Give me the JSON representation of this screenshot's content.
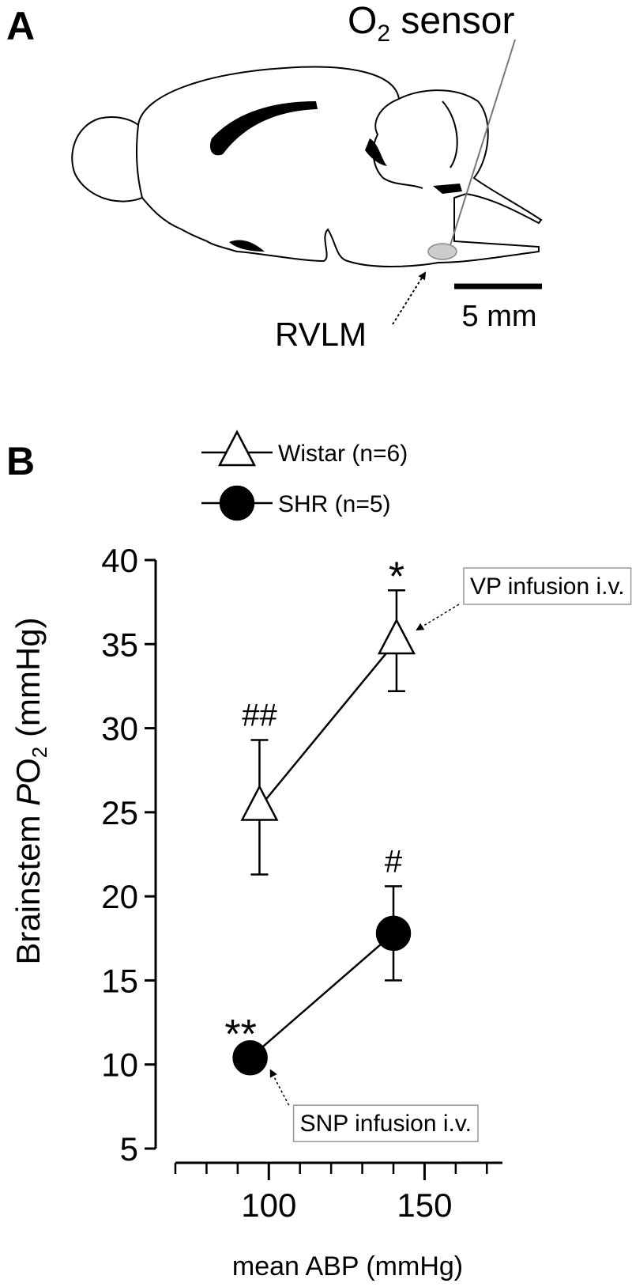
{
  "panel_a": {
    "label": "A",
    "sensor_label": {
      "main": "O",
      "sub": "2",
      "suffix": " sensor"
    },
    "region_label": "RVLM",
    "scale_bar_label": "5 mm"
  },
  "chart_data": {
    "type": "line",
    "panel_label": "B",
    "xlabel": "mean ABP (mmHg)",
    "ylabel": {
      "prefix": "Brainstem ",
      "italic": "P",
      "main": "O",
      "sub": "2",
      "suffix": " (mmHg)"
    },
    "xlim": [
      70,
      175
    ],
    "xticks": [
      100,
      150
    ],
    "xminor_ticks": [
      70,
      80,
      90,
      100,
      110,
      120,
      130,
      140,
      150,
      160,
      170
    ],
    "ylim": [
      5,
      40
    ],
    "yticks": [
      5,
      10,
      15,
      20,
      25,
      30,
      35,
      40
    ],
    "series": [
      {
        "name": "Wistar (n=6)",
        "marker": "triangle",
        "color": "#000000",
        "fill": "#ffffff",
        "x": [
          97,
          141
        ],
        "values": [
          25.3,
          35.2
        ],
        "errors": [
          4.0,
          3.0
        ],
        "significance": [
          "##",
          "*"
        ]
      },
      {
        "name": "SHR (n=5)",
        "marker": "circle",
        "color": "#000000",
        "fill": "#000000",
        "x": [
          94,
          140
        ],
        "values": [
          10.4,
          17.8
        ],
        "errors": [
          null,
          2.8
        ],
        "significance": [
          "**",
          "#"
        ]
      }
    ],
    "annotations": [
      {
        "text": "VP infusion i.v.",
        "series": 0,
        "point": 1
      },
      {
        "text": "SNP infusion i.v.",
        "series": 1,
        "point": 0
      }
    ]
  }
}
